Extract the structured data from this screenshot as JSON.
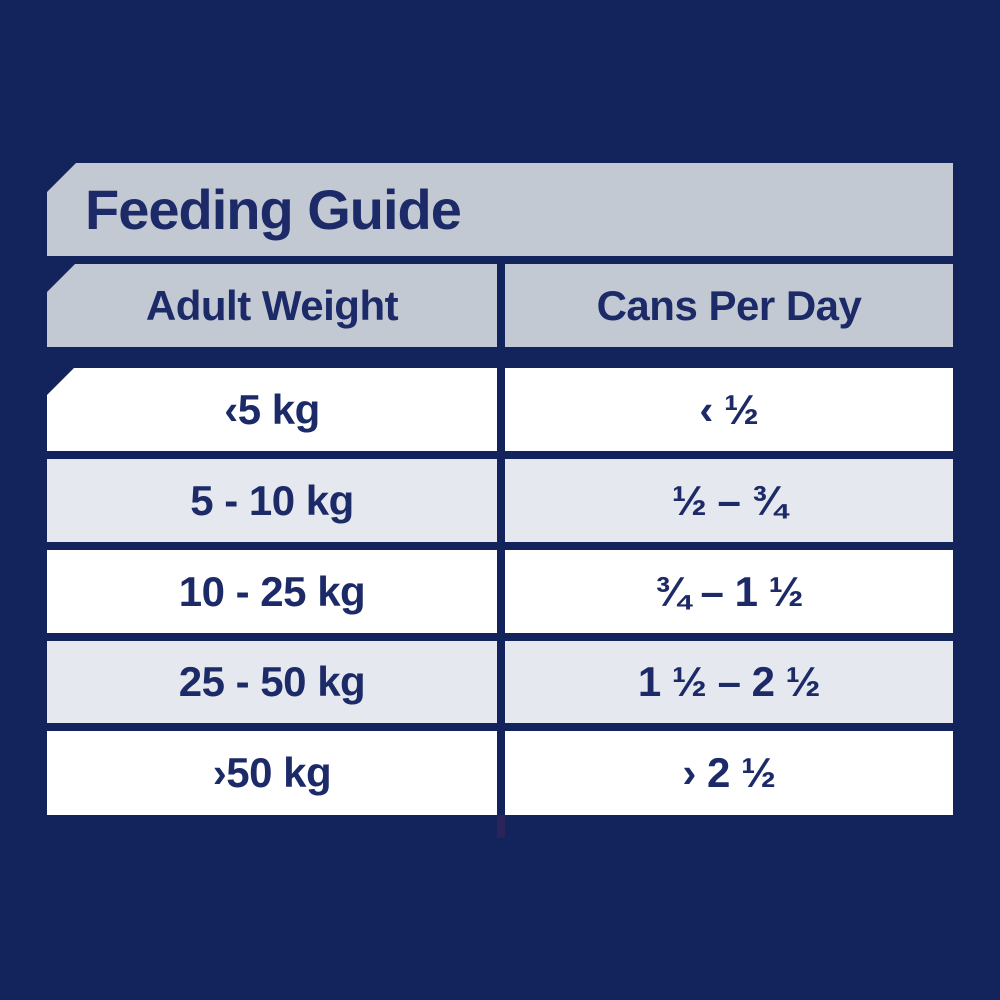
{
  "chart_data": {
    "type": "table",
    "title": "Feeding Guide",
    "columns": [
      {
        "label": "Adult Weight"
      },
      {
        "label": "Cans Per Day"
      }
    ],
    "rows": [
      {
        "adult_weight": "‹5 kg",
        "cans_per_day": "‹ ½"
      },
      {
        "adult_weight": "5 - 10 kg",
        "cans_per_day": "½ – ¾"
      },
      {
        "adult_weight": "10 - 25 kg",
        "cans_per_day": "¾ – 1 ½"
      },
      {
        "adult_weight": "25 - 50 kg",
        "cans_per_day": "1 ½ – 2 ½"
      },
      {
        "adult_weight": "›50 kg",
        "cans_per_day": "› 2 ½"
      }
    ],
    "layout": "two-column feeding table, zebra striped rows, angled top-left corner cuts on title bar, header row and first data row"
  },
  "colors": {
    "background": "#13235B",
    "panel_gray": "#C3C9D3",
    "row_white": "#FFFFFF",
    "row_alt": "#E5E8EE",
    "text_navy": "#1D2A68",
    "divider_tail": "#2A2458"
  }
}
